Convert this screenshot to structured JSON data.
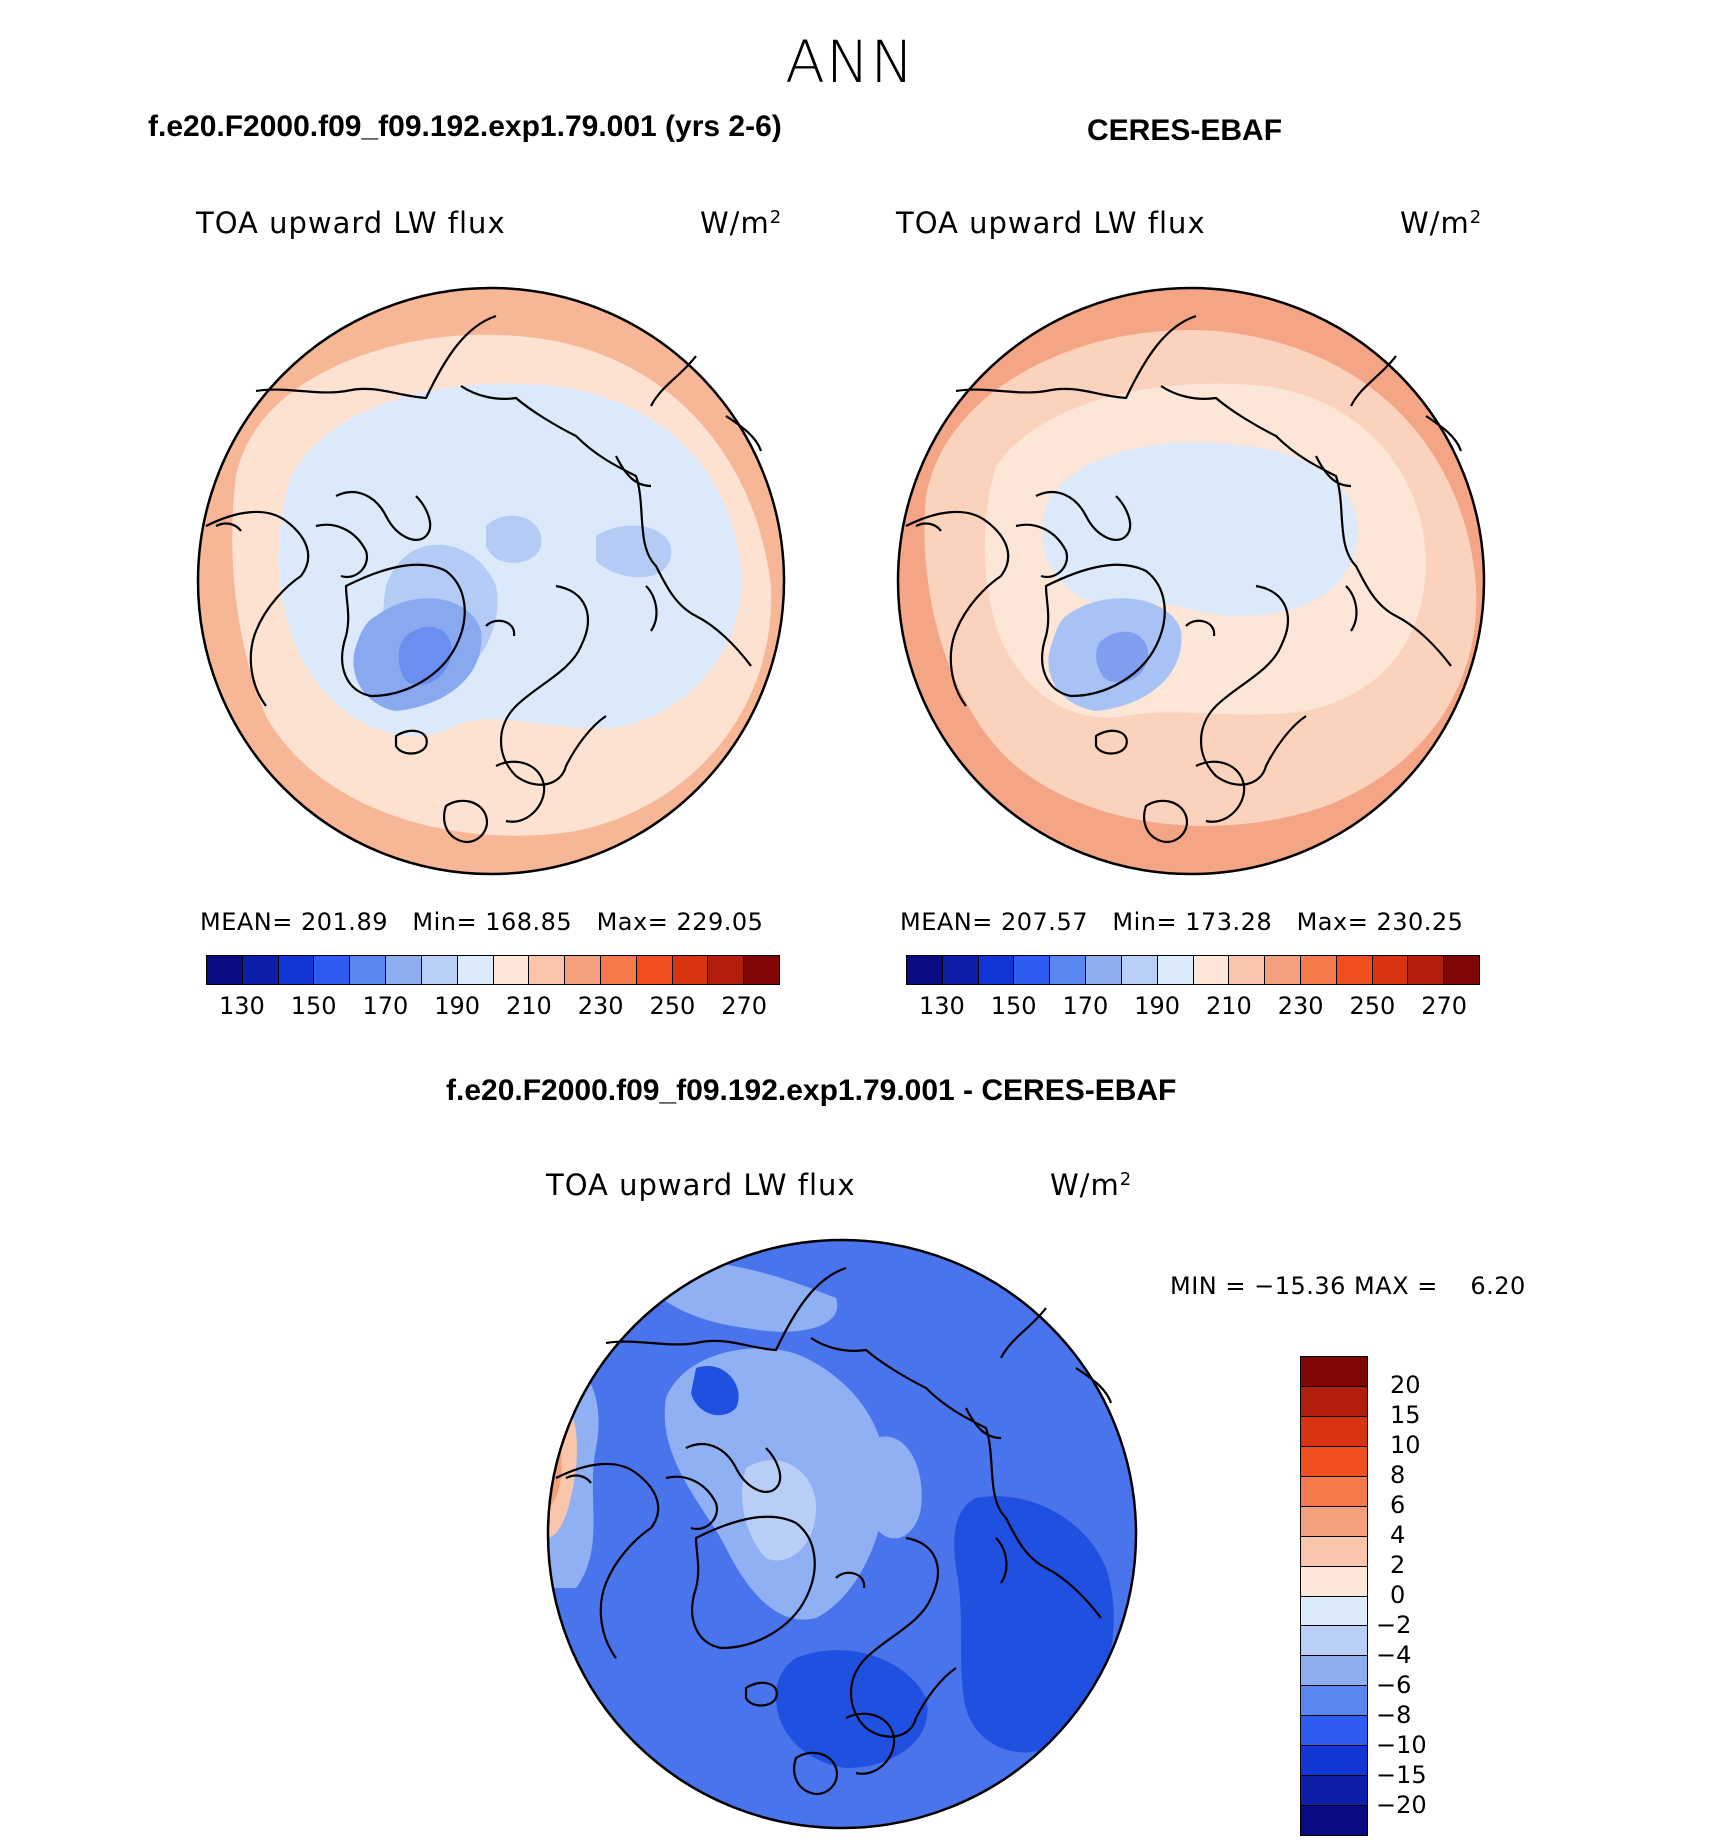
{
  "title": "ANN",
  "panels": [
    {
      "case": "f.e20.F2000.f09_f09.192.exp1.79.001 (yrs 2-6)",
      "variable": "TOA upward LW flux",
      "units": "W/m",
      "units_exp": "2",
      "mean_label": "MEAN=",
      "mean": "201.89",
      "min_label": "Min=",
      "min": "168.85",
      "max_label": "Max=",
      "max": "229.05"
    },
    {
      "case": "CERES-EBAF",
      "variable": "TOA upward LW flux",
      "units": "W/m",
      "units_exp": "2",
      "mean_label": "MEAN=",
      "mean": "207.57",
      "min_label": "Min=",
      "min": "173.28",
      "max_label": "Max=",
      "max": "230.25"
    }
  ],
  "abs_colorbar": {
    "ticks": [
      "130",
      "150",
      "170",
      "190",
      "210",
      "230",
      "250",
      "270"
    ],
    "colors": [
      "#0a0a82",
      "#0d1fa8",
      "#1235d6",
      "#2e5cf0",
      "#5a86ef",
      "#8eaef2",
      "#b9cff7",
      "#dcebfb",
      "#fde7d8",
      "#f9c6ab",
      "#f5a07d",
      "#f57a4c",
      "#f0501f",
      "#d93412",
      "#b31d0b",
      "#800606"
    ]
  },
  "diff_panel": {
    "case": "f.e20.F2000.f09_f09.192.exp1.79.001 - CERES-EBAF",
    "variable": "TOA upward LW flux",
    "units": "W/m",
    "units_exp": "2",
    "minmax": "MIN = −15.36 MAX =    6.20"
  },
  "diff_colorbar": {
    "ticks": [
      "20",
      "15",
      "10",
      "8",
      "6",
      "4",
      "2",
      "0",
      "−2",
      "−4",
      "−6",
      "−8",
      "−10",
      "−15",
      "−20"
    ],
    "colors": [
      "#800606",
      "#b31d0b",
      "#d93412",
      "#f0501f",
      "#f57a4c",
      "#f5a07d",
      "#f9c6ab",
      "#fde7d8",
      "#dcebfb",
      "#b9cff7",
      "#8eaef2",
      "#5a86ef",
      "#2e5cf0",
      "#1235d6",
      "#0d1fa8",
      "#0a0a82"
    ]
  },
  "map_colors": {
    "model": {
      "ring": "#f7b696",
      "mid": "#fde2d2",
      "inner": "#dce9fb",
      "cold": "#b4cbf6",
      "greenland": "#88a8f0",
      "core": "#6a8ff0"
    },
    "obs": {
      "ring": "#f3a585",
      "mid": "#fbd3bc",
      "inner": "#fbe6d8",
      "cold": "#dce9fb",
      "greenland": "#a9c2f5",
      "core": "#7f9ef0"
    },
    "diff": {
      "base": "#4a74ec",
      "light": "#8fb0f3",
      "pale": "#b8cef7",
      "dark": "#2050e0",
      "warm": "#f9c6ab",
      "warm2": "#f5a07d"
    }
  }
}
